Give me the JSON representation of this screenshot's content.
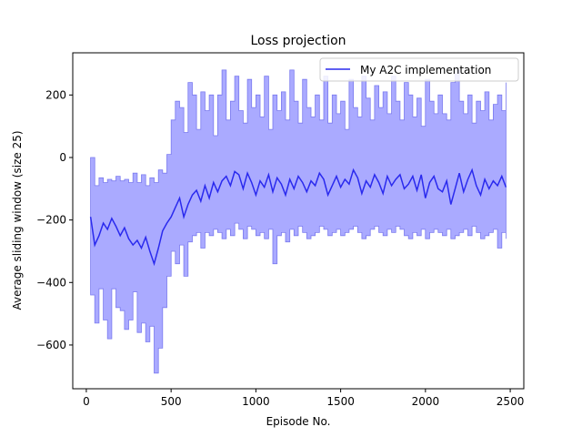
{
  "chart_data": {
    "type": "line",
    "title": "Loss projection",
    "xlabel": "Episode No.",
    "ylabel": "Average sliding window (size 25)",
    "xlim": [
      -80,
      2580
    ],
    "ylim": [
      -740,
      335
    ],
    "xticks": [
      0,
      500,
      1000,
      1500,
      2000,
      2500
    ],
    "yticks": [
      -600,
      -400,
      -200,
      0,
      200
    ],
    "xtick_labels": [
      "0",
      "500",
      "1000",
      "1500",
      "2000",
      "2500"
    ],
    "ytick_labels": [
      "−600",
      "−400",
      "−200",
      "0",
      "200"
    ],
    "grid": false,
    "legend": {
      "position": "upper-right",
      "entries": [
        "My A2C implementation"
      ]
    },
    "colors": {
      "line": "#2a2aee",
      "band_fill": "#aaaaff",
      "band_edge": "#7a7aef"
    },
    "series": [
      {
        "name": "My A2C implementation",
        "x": [
          25,
          50,
          75,
          100,
          125,
          150,
          175,
          200,
          225,
          250,
          275,
          300,
          325,
          350,
          375,
          400,
          425,
          450,
          475,
          500,
          525,
          550,
          575,
          600,
          625,
          650,
          675,
          700,
          725,
          750,
          775,
          800,
          825,
          850,
          875,
          900,
          925,
          950,
          975,
          1000,
          1025,
          1050,
          1075,
          1100,
          1125,
          1150,
          1175,
          1200,
          1225,
          1250,
          1275,
          1300,
          1325,
          1350,
          1375,
          1400,
          1425,
          1450,
          1475,
          1500,
          1525,
          1550,
          1575,
          1600,
          1625,
          1650,
          1675,
          1700,
          1725,
          1750,
          1775,
          1800,
          1825,
          1850,
          1875,
          1900,
          1925,
          1950,
          1975,
          2000,
          2025,
          2050,
          2075,
          2100,
          2125,
          2150,
          2175,
          2200,
          2225,
          2250,
          2275,
          2300,
          2325,
          2350,
          2375,
          2400,
          2425,
          2450,
          2475
        ],
        "y": [
          -190,
          -280,
          -250,
          -210,
          -230,
          -195,
          -220,
          -250,
          -225,
          -260,
          -280,
          -265,
          -290,
          -255,
          -300,
          -340,
          -290,
          -235,
          -210,
          -190,
          -160,
          -130,
          -190,
          -150,
          -120,
          -105,
          -140,
          -90,
          -130,
          -80,
          -110,
          -75,
          -60,
          -90,
          -45,
          -55,
          -100,
          -50,
          -80,
          -120,
          -75,
          -95,
          -55,
          -110,
          -65,
          -85,
          -120,
          -70,
          -100,
          -60,
          -80,
          -110,
          -75,
          -90,
          -50,
          -70,
          -120,
          -90,
          -60,
          -95,
          -70,
          -85,
          -40,
          -65,
          -115,
          -75,
          -95,
          -55,
          -80,
          -115,
          -60,
          -90,
          -70,
          -55,
          -100,
          -85,
          -60,
          -105,
          -55,
          -130,
          -80,
          -60,
          -100,
          -110,
          -75,
          -150,
          -100,
          -50,
          -110,
          -70,
          -40,
          -90,
          -120,
          -70,
          -100,
          -75,
          -90,
          -60,
          -95
        ],
        "upper": [
          0,
          -90,
          -65,
          -80,
          -70,
          -75,
          -60,
          -75,
          -70,
          -80,
          -50,
          -80,
          -55,
          -90,
          -65,
          -80,
          -40,
          -50,
          10,
          120,
          180,
          160,
          80,
          240,
          200,
          90,
          210,
          150,
          200,
          70,
          200,
          280,
          120,
          180,
          260,
          150,
          110,
          250,
          160,
          200,
          130,
          260,
          90,
          200,
          150,
          210,
          120,
          280,
          180,
          110,
          250,
          160,
          130,
          200,
          120,
          260,
          110,
          200,
          140,
          180,
          90,
          250,
          160,
          130,
          260,
          190,
          120,
          230,
          160,
          210,
          140,
          260,
          180,
          120,
          240,
          200,
          130,
          190,
          100,
          250,
          180,
          140,
          200,
          140,
          120,
          240,
          280,
          180,
          140,
          200,
          110,
          180,
          150,
          210,
          120,
          170,
          200,
          150,
          240
        ],
        "lower": [
          -440,
          -530,
          -420,
          -520,
          -580,
          -420,
          -480,
          -490,
          -550,
          -520,
          -430,
          -560,
          -530,
          -590,
          -540,
          -690,
          -610,
          -480,
          -380,
          -300,
          -340,
          -280,
          -380,
          -270,
          -250,
          -240,
          -290,
          -240,
          -250,
          -230,
          -240,
          -260,
          -230,
          -250,
          -210,
          -230,
          -260,
          -220,
          -230,
          -250,
          -240,
          -260,
          -230,
          -340,
          -250,
          -240,
          -270,
          -230,
          -250,
          -220,
          -240,
          -260,
          -250,
          -240,
          -220,
          -230,
          -250,
          -240,
          -230,
          -250,
          -240,
          -230,
          -220,
          -240,
          -260,
          -250,
          -230,
          -220,
          -240,
          -250,
          -230,
          -240,
          -220,
          -230,
          -250,
          -260,
          -240,
          -250,
          -230,
          -260,
          -240,
          -230,
          -240,
          -250,
          -230,
          -260,
          -250,
          -240,
          -230,
          -250,
          -220,
          -240,
          -260,
          -250,
          -240,
          -230,
          -290,
          -240,
          -260
        ]
      }
    ]
  }
}
